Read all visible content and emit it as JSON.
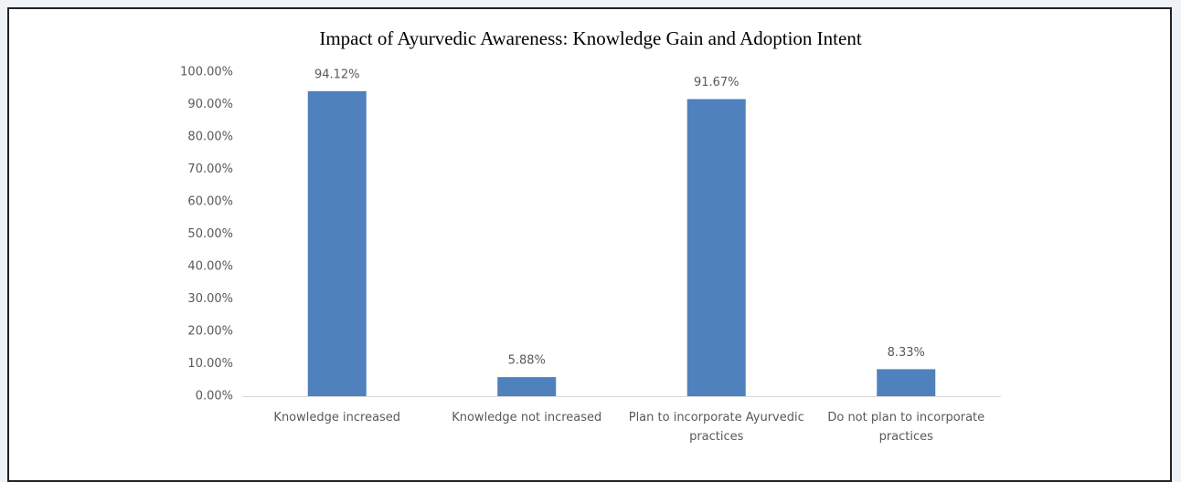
{
  "chart_data": {
    "type": "bar",
    "title": "Impact of Ayurvedic Awareness: Knowledge Gain and Adoption Intent",
    "categories": [
      "Knowledge increased",
      "Knowledge not increased",
      "Plan to incorporate Ayurvedic practices",
      "Do not plan to incorporate practices"
    ],
    "values": [
      94.12,
      5.88,
      91.67,
      8.33
    ],
    "value_labels": [
      "94.12%",
      "5.88%",
      "91.67%",
      "8.33%"
    ],
    "color": "#4f81bd",
    "ylim": [
      0,
      100
    ],
    "yticks": [
      {
        "value": 0,
        "label": "0.00%"
      },
      {
        "value": 10,
        "label": "10.00%"
      },
      {
        "value": 20,
        "label": "20.00%"
      },
      {
        "value": 30,
        "label": "30.00%"
      },
      {
        "value": 40,
        "label": "40.00%"
      },
      {
        "value": 50,
        "label": "50.00%"
      },
      {
        "value": 60,
        "label": "60.00%"
      },
      {
        "value": 70,
        "label": "70.00%"
      },
      {
        "value": 80,
        "label": "80.00%"
      },
      {
        "value": 90,
        "label": "90.00%"
      },
      {
        "value": 100,
        "label": "100.00%"
      }
    ],
    "grid": false
  }
}
